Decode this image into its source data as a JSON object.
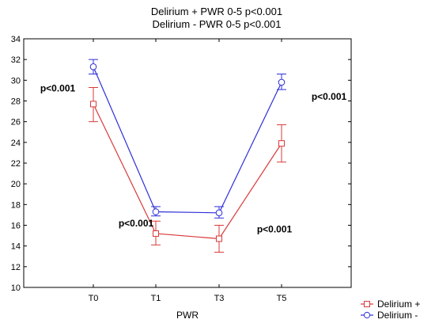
{
  "chart_data": {
    "type": "line",
    "title": [
      "Delirium + PWR 0-5 p<0.001",
      "Delirium - PWR 0-5 p<0.001"
    ],
    "xlabel": "PWR",
    "ylabel": "",
    "categories": [
      "T0",
      "T1",
      "T3",
      "T5"
    ],
    "ylim": [
      10,
      34
    ],
    "yticks": [
      "10",
      "12",
      "14",
      "16",
      "18",
      "20",
      "22",
      "24",
      "26",
      "28",
      "30",
      "32",
      "34"
    ],
    "grid": false,
    "legend_position": "bottom-right",
    "series": [
      {
        "name": "Delirium +",
        "color": "#d93a3a",
        "marker": "square",
        "values": [
          27.7,
          15.2,
          14.7,
          23.9
        ],
        "err_low": [
          26.0,
          14.1,
          13.4,
          22.1
        ],
        "err_high": [
          29.3,
          16.4,
          16.0,
          25.7
        ]
      },
      {
        "name": "Delirium -",
        "color": "#2f2fd9",
        "marker": "circle",
        "values": [
          31.3,
          17.3,
          17.2,
          29.8
        ],
        "err_low": [
          30.6,
          16.9,
          16.7,
          29.1
        ],
        "err_high": [
          32.0,
          17.8,
          17.8,
          30.6
        ]
      }
    ],
    "annotations": [
      {
        "text": "p<0.001",
        "x": "T0",
        "y": 28.9
      },
      {
        "text": "p<0.001",
        "x": "T1",
        "y": 15.9
      },
      {
        "text": "p<0.001",
        "x": "T3",
        "y": 15.3
      },
      {
        "text": "p<0.001",
        "x": "T5",
        "y": 28.1
      }
    ]
  }
}
